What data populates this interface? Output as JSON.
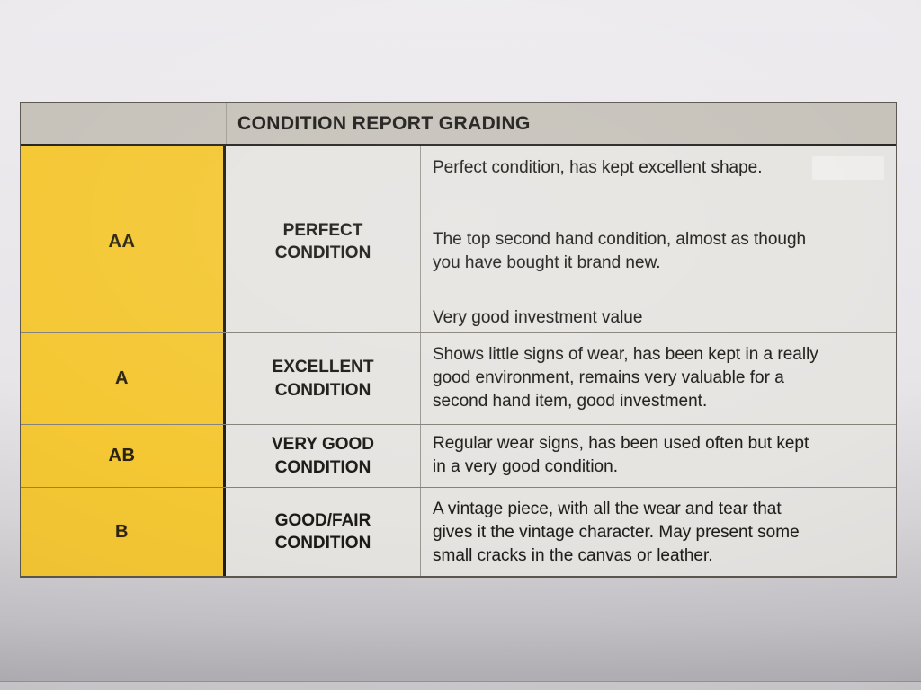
{
  "table": {
    "title": "CONDITION REPORT GRADING",
    "rows": [
      {
        "grade": "AA",
        "condition": "PERFECT CONDITION",
        "description": [
          "Perfect condition, has kept excellent shape.",
          "The top second hand condition, almost as though\nyou have bought it brand new.",
          "Very good investment value"
        ]
      },
      {
        "grade": "A",
        "condition": "EXCELLENT CONDITION",
        "description": [
          "Shows little signs of wear, has been kept in a really\ngood environment, remains very valuable for a\nsecond hand item, good investment."
        ]
      },
      {
        "grade": "AB",
        "condition": "VERY GOOD CONDITION",
        "description": [
          "Regular wear signs, has been used often but kept\nin a very good condition."
        ]
      },
      {
        "grade": "B",
        "condition": "GOOD/FAIR CONDITION",
        "description": [
          "A vintage piece, with all the wear and tear that\ngives it the vintage character. May present some\nsmall cracks in the canvas or leather."
        ]
      }
    ]
  },
  "colors": {
    "grade_highlight": "#f4c733",
    "header_bg": "#c6c2ba",
    "cell_bg": "#e6e4e1",
    "text": "#1e1d1b"
  }
}
